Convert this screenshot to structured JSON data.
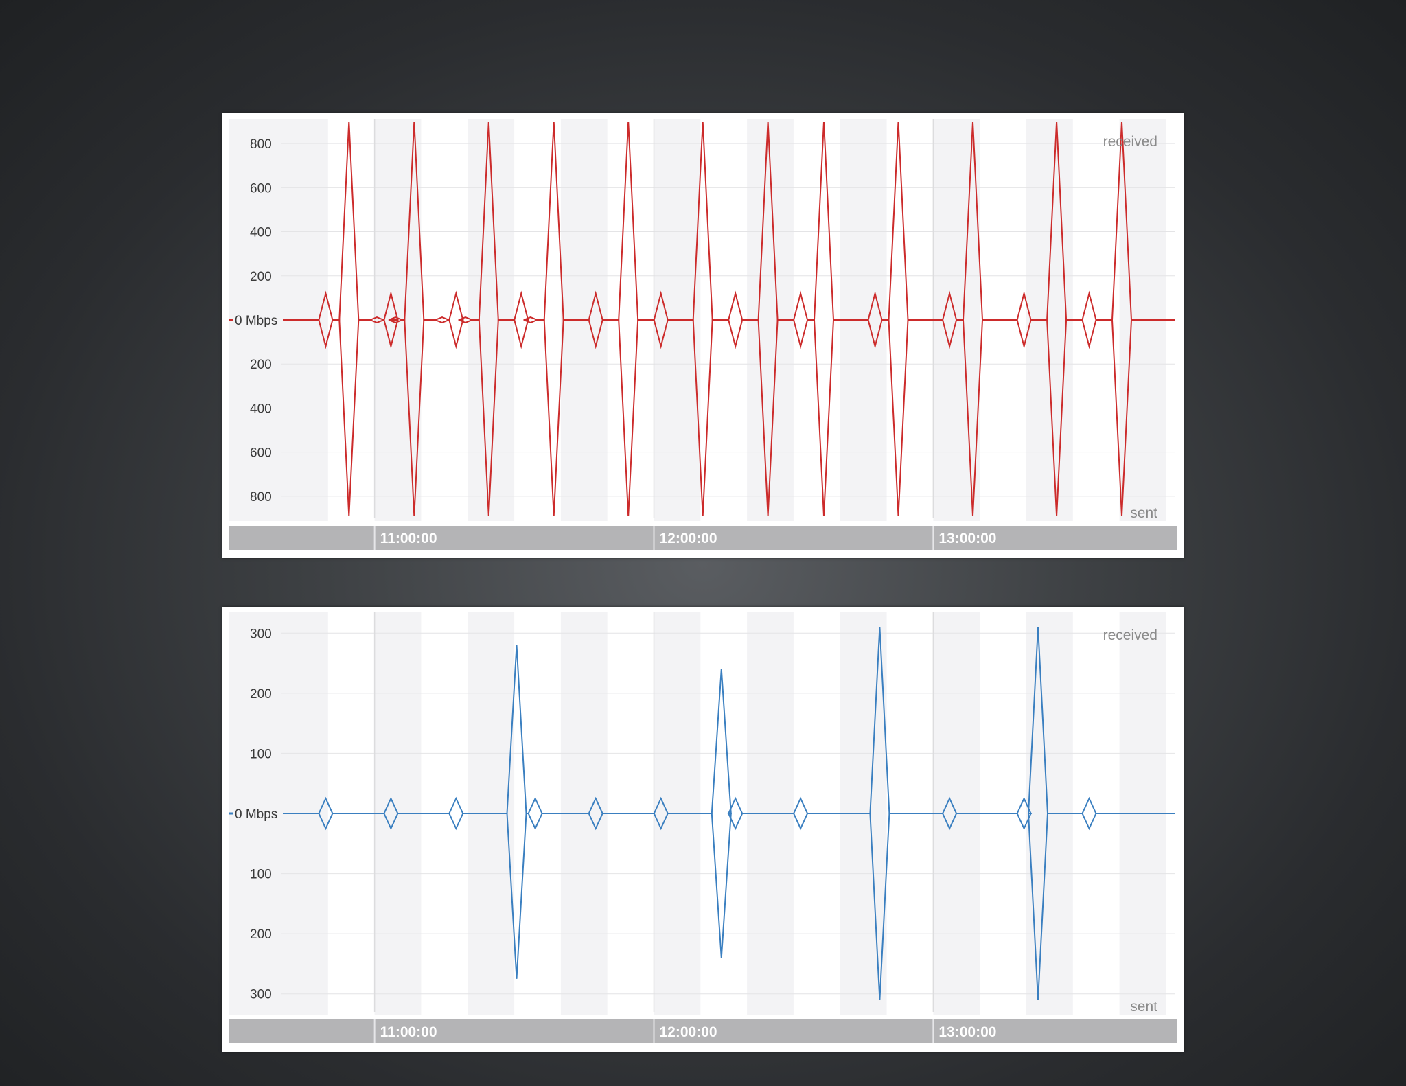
{
  "chart_data": [
    {
      "type": "line",
      "unit": "Mbps",
      "color": "#cc2b2b",
      "y_ticks_upper": [
        "800",
        "600",
        "400",
        "200"
      ],
      "y_ticks_lower": [
        "200",
        "400",
        "600",
        "800"
      ],
      "zero_label": "0 Mbps",
      "ylim": [
        -900,
        900
      ],
      "received_label": "received",
      "sent_label": "sent",
      "x_ticks": [
        "11:00:00",
        "12:00:00",
        "13:00:00"
      ],
      "x_tick_minutes": [
        660,
        720,
        780
      ],
      "xlim_minutes": [
        640,
        832
      ],
      "series": [
        {
          "role": "received",
          "spikes": [
            {
              "t": 649.5,
              "v": 120
            },
            {
              "t": 654.5,
              "v": 900
            },
            {
              "t": 663.5,
              "v": 120
            },
            {
              "t": 668.5,
              "v": 900
            },
            {
              "t": 677.5,
              "v": 120
            },
            {
              "t": 684.5,
              "v": 900
            },
            {
              "t": 691.5,
              "v": 120
            },
            {
              "t": 698.5,
              "v": 900
            },
            {
              "t": 707.5,
              "v": 120
            },
            {
              "t": 714.5,
              "v": 900
            },
            {
              "t": 721.5,
              "v": 120
            },
            {
              "t": 730.5,
              "v": 900
            },
            {
              "t": 737.5,
              "v": 120
            },
            {
              "t": 744.5,
              "v": 900
            },
            {
              "t": 751.5,
              "v": 120
            },
            {
              "t": 756.5,
              "v": 900
            },
            {
              "t": 767.5,
              "v": 120
            },
            {
              "t": 772.5,
              "v": 900
            },
            {
              "t": 783.5,
              "v": 120
            },
            {
              "t": 788.5,
              "v": 900
            },
            {
              "t": 799.5,
              "v": 120
            },
            {
              "t": 806.5,
              "v": 900
            },
            {
              "t": 813.5,
              "v": 120
            },
            {
              "t": 820.5,
              "v": 900
            }
          ],
          "small_bumps": [
            {
              "t": 660.5,
              "v": 12
            },
            {
              "t": 664.5,
              "v": 12
            },
            {
              "t": 674.5,
              "v": 12
            },
            {
              "t": 679.5,
              "v": 12
            },
            {
              "t": 693.5,
              "v": 12
            }
          ]
        },
        {
          "role": "sent",
          "spikes": [
            {
              "t": 649.5,
              "v": 120
            },
            {
              "t": 654.5,
              "v": 890
            },
            {
              "t": 663.5,
              "v": 120
            },
            {
              "t": 668.5,
              "v": 890
            },
            {
              "t": 677.5,
              "v": 120
            },
            {
              "t": 684.5,
              "v": 890
            },
            {
              "t": 691.5,
              "v": 120
            },
            {
              "t": 698.5,
              "v": 890
            },
            {
              "t": 707.5,
              "v": 120
            },
            {
              "t": 714.5,
              "v": 890
            },
            {
              "t": 721.5,
              "v": 120
            },
            {
              "t": 730.5,
              "v": 890
            },
            {
              "t": 737.5,
              "v": 120
            },
            {
              "t": 744.5,
              "v": 890
            },
            {
              "t": 751.5,
              "v": 120
            },
            {
              "t": 756.5,
              "v": 890
            },
            {
              "t": 767.5,
              "v": 120
            },
            {
              "t": 772.5,
              "v": 890
            },
            {
              "t": 783.5,
              "v": 120
            },
            {
              "t": 788.5,
              "v": 890
            },
            {
              "t": 799.5,
              "v": 120
            },
            {
              "t": 806.5,
              "v": 890
            },
            {
              "t": 813.5,
              "v": 120
            },
            {
              "t": 820.5,
              "v": 890
            }
          ],
          "small_bumps": [
            {
              "t": 660.5,
              "v": 12
            },
            {
              "t": 664.5,
              "v": 12
            },
            {
              "t": 674.5,
              "v": 12
            },
            {
              "t": 679.5,
              "v": 12
            },
            {
              "t": 693.5,
              "v": 12
            }
          ]
        }
      ]
    },
    {
      "type": "line",
      "unit": "Mbps",
      "color": "#3a7fc0",
      "y_ticks_upper": [
        "300",
        "200",
        "100"
      ],
      "y_ticks_lower": [
        "100",
        "200",
        "300"
      ],
      "zero_label": "0 Mbps",
      "ylim": [
        -330,
        330
      ],
      "received_label": "received",
      "sent_label": "sent",
      "x_ticks": [
        "11:00:00",
        "12:00:00",
        "13:00:00"
      ],
      "x_tick_minutes": [
        660,
        720,
        780
      ],
      "xlim_minutes": [
        640,
        832
      ],
      "series": [
        {
          "role": "received",
          "spikes": [
            {
              "t": 649.5,
              "v": 25
            },
            {
              "t": 663.5,
              "v": 25
            },
            {
              "t": 677.5,
              "v": 25
            },
            {
              "t": 690.5,
              "v": 280
            },
            {
              "t": 694.5,
              "v": 25
            },
            {
              "t": 707.5,
              "v": 25
            },
            {
              "t": 721.5,
              "v": 25
            },
            {
              "t": 734.5,
              "v": 240
            },
            {
              "t": 737.5,
              "v": 25
            },
            {
              "t": 751.5,
              "v": 25
            },
            {
              "t": 768.5,
              "v": 310
            },
            {
              "t": 783.5,
              "v": 25
            },
            {
              "t": 799.5,
              "v": 25
            },
            {
              "t": 802.5,
              "v": 310
            },
            {
              "t": 813.5,
              "v": 25
            }
          ]
        },
        {
          "role": "sent",
          "spikes": [
            {
              "t": 649.5,
              "v": 25
            },
            {
              "t": 663.5,
              "v": 25
            },
            {
              "t": 677.5,
              "v": 25
            },
            {
              "t": 690.5,
              "v": 275
            },
            {
              "t": 694.5,
              "v": 25
            },
            {
              "t": 707.5,
              "v": 25
            },
            {
              "t": 721.5,
              "v": 25
            },
            {
              "t": 734.5,
              "v": 240
            },
            {
              "t": 737.5,
              "v": 25
            },
            {
              "t": 751.5,
              "v": 25
            },
            {
              "t": 768.5,
              "v": 310
            },
            {
              "t": 783.5,
              "v": 25
            },
            {
              "t": 799.5,
              "v": 25
            },
            {
              "t": 802.5,
              "v": 310
            },
            {
              "t": 813.5,
              "v": 25
            }
          ]
        }
      ]
    }
  ]
}
